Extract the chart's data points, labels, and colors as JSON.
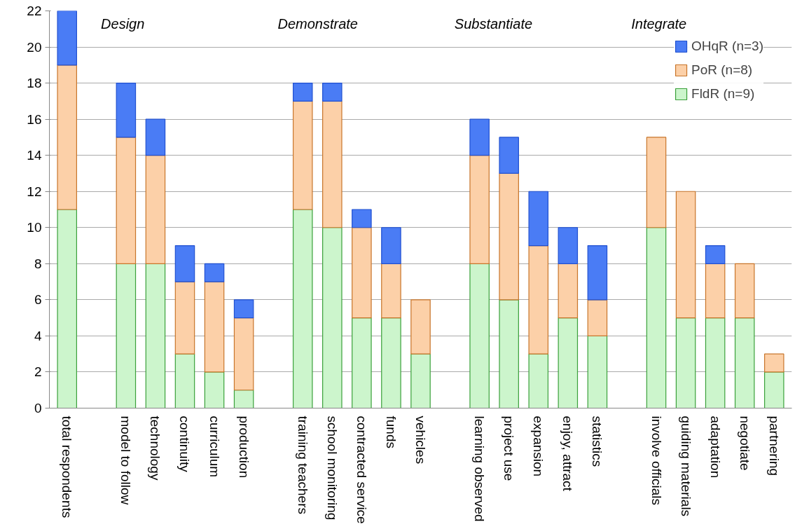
{
  "chart_data": {
    "type": "bar",
    "stacked": true,
    "categories": [
      "total respondents",
      null,
      "model to follow",
      "technology",
      "continuity",
      "curriculum",
      "production",
      null,
      "training teachers",
      "school monitoring",
      "contracted service",
      "funds",
      "vehicles",
      null,
      "learning observed",
      "project use",
      "expansion",
      "enjoy, attract",
      "statistics",
      null,
      "involve officials",
      "guiding materials",
      "adaptation",
      "negotiate",
      "partnering"
    ],
    "series": [
      {
        "name": "FldR (n=9)",
        "color": "#ccf5cc",
        "values": [
          11,
          null,
          8,
          8,
          3,
          2,
          1,
          null,
          11,
          10,
          5,
          5,
          3,
          null,
          8,
          6,
          3,
          5,
          4,
          null,
          10,
          5,
          5,
          5,
          2
        ]
      },
      {
        "name": "PoR (n=8)",
        "color": "#fcd0a8",
        "values": [
          8,
          null,
          7,
          6,
          4,
          5,
          4,
          null,
          6,
          7,
          5,
          3,
          3,
          null,
          6,
          7,
          6,
          3,
          2,
          null,
          5,
          7,
          3,
          3,
          1
        ]
      },
      {
        "name": "OHqR (n=3)",
        "color": "#4a7cf5",
        "values": [
          3,
          null,
          3,
          2,
          2,
          1,
          1,
          null,
          1,
          1,
          1,
          2,
          null,
          null,
          2,
          2,
          3,
          2,
          3,
          null,
          null,
          null,
          1,
          null,
          null
        ]
      }
    ],
    "annotations": [
      "Design",
      "Demonstrate",
      "Substantiate",
      "Integrate"
    ],
    "ylim": [
      0,
      22
    ],
    "yticks": [
      0,
      2,
      4,
      6,
      8,
      10,
      12,
      14,
      16,
      18,
      20,
      22
    ],
    "grid": "y",
    "legend": "top right"
  }
}
